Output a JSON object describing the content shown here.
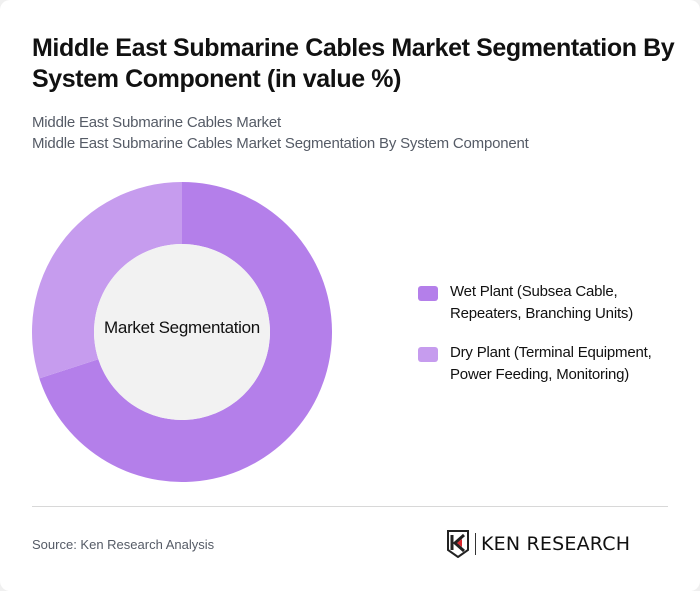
{
  "title": "Middle East Submarine Cables Market Segmentation By System Component (in value %)",
  "subtitle_1": "Middle East Submarine Cables Market",
  "subtitle_2": "Middle East Submarine Cables Market Segmentation By System Component",
  "center_label": "Market Segmentation",
  "legend": [
    {
      "label": "Wet Plant (Subsea Cable, Repeaters, Branching Units)",
      "color": "#B47FEA"
    },
    {
      "label": "Dry Plant (Terminal Equipment, Power Feeding, Monitoring)",
      "color": "#C69CEE"
    }
  ],
  "source": "Source: Ken Research Analysis",
  "logo_text": "KEN RESEARCH",
  "colors": {
    "wet": "#B47FEA",
    "dry": "#C69CEE",
    "center": "#F2F2F2"
  },
  "chart_data": {
    "type": "pie",
    "title": "Middle East Submarine Cables Market Segmentation By System Component (in value %)",
    "subtitle": "Middle East Submarine Cables Market Segmentation By System Component",
    "categories": [
      "Wet Plant (Subsea Cable, Repeaters, Branching Units)",
      "Dry Plant (Terminal Equipment, Power Feeding, Monitoring)"
    ],
    "values": [
      70,
      30
    ],
    "donut": true,
    "center_text": "Market Segmentation",
    "legend_position": "right"
  }
}
